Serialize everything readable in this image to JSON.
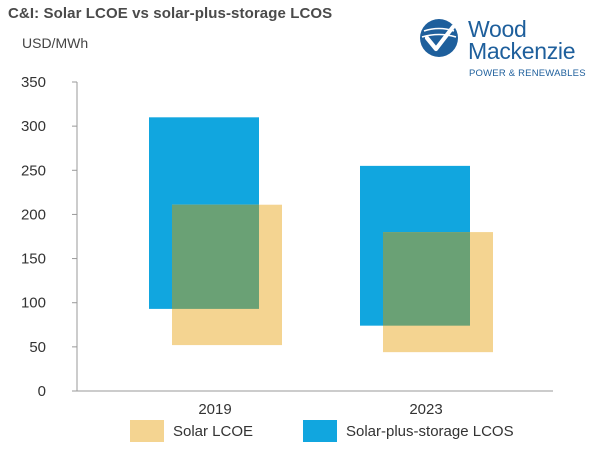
{
  "header": {
    "title": "C&I: Solar LCOE vs solar-plus-storage LCOS",
    "unit": "USD/MWh"
  },
  "logo": {
    "line1": "Wood",
    "line2": "Mackenzie",
    "tagline": "POWER & RENEWABLES"
  },
  "colors": {
    "storage": "#11a6df",
    "solar": "#f4d491",
    "overlap": "#6aa175",
    "axis": "#999999",
    "brand": "#1e5f9c"
  },
  "chart_data": {
    "type": "bar",
    "subtype": "floating-range",
    "categories": [
      "2019",
      "2023"
    ],
    "ylim": [
      0,
      350
    ],
    "yticks": [
      0,
      50,
      100,
      150,
      200,
      250,
      300,
      350
    ],
    "ylabel": "USD/MWh",
    "xlabel": "",
    "grid": false,
    "legend_position": "bottom",
    "series": [
      {
        "name": "Solar LCOE",
        "color": "#f4d491",
        "ranges": [
          {
            "category": "2019",
            "low": 52,
            "high": 211
          },
          {
            "category": "2023",
            "low": 44,
            "high": 180
          }
        ]
      },
      {
        "name": "Solar-plus-storage LCOS",
        "color": "#11a6df",
        "ranges": [
          {
            "category": "2019",
            "low": 93,
            "high": 310
          },
          {
            "category": "2023",
            "low": 74,
            "high": 255
          }
        ]
      }
    ]
  }
}
